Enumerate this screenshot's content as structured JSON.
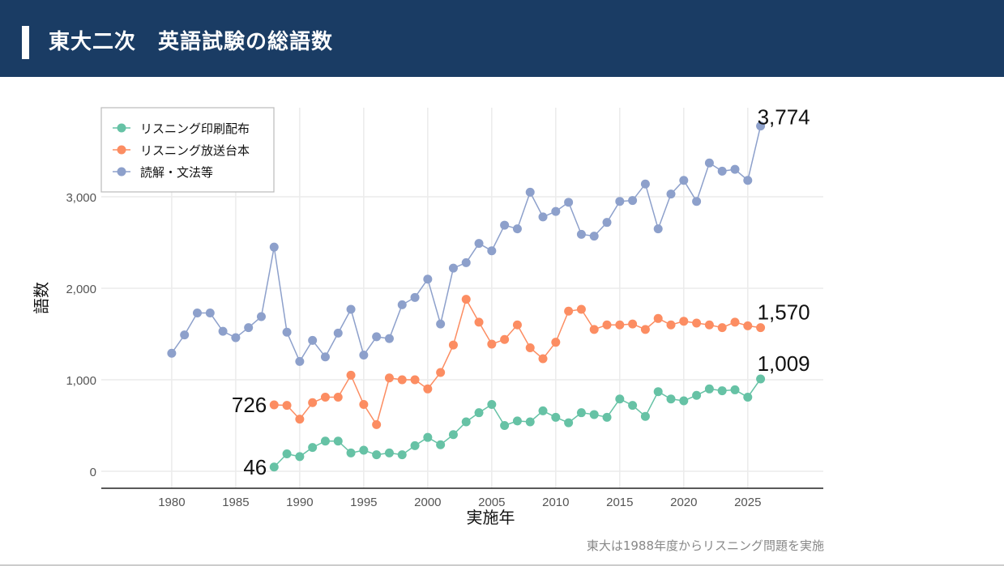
{
  "header": {
    "title": "東大二次　英語試験の総語数"
  },
  "caption": "東大は1988年度からリスニング問題を実施",
  "chart_data": {
    "type": "line",
    "title": "",
    "xlabel": "実施年",
    "ylabel": "語数",
    "xlim": [
      1974.5,
      2030.9
    ],
    "ylim": [
      -186,
      3974
    ],
    "x_ticks": [
      1980,
      1985,
      1990,
      1995,
      2000,
      2005,
      2010,
      2015,
      2020,
      2025
    ],
    "x_tick_labels": [
      "1980",
      "1985",
      "1990",
      "1995",
      "2000",
      "2005",
      "2010",
      "2015",
      "2020",
      "2025"
    ],
    "y_ticks": [
      0,
      1000,
      2000,
      3000
    ],
    "y_tick_labels": [
      "0",
      "1,000",
      "2,000",
      "3,000"
    ],
    "grid": true,
    "legend_position": "top-left",
    "series": [
      {
        "name": "リスニング印刷配布",
        "color": "#66c2a5",
        "start_year": 1988,
        "values": [
          46,
          190,
          160,
          260,
          330,
          330,
          200,
          230,
          180,
          200,
          180,
          280,
          370,
          290,
          400,
          540,
          640,
          730,
          500,
          550,
          540,
          660,
          590,
          530,
          640,
          620,
          590,
          790,
          720,
          600,
          870,
          790,
          770,
          830,
          900,
          880,
          890,
          810,
          1009
        ],
        "first_label": "46",
        "last_label": "1,009"
      },
      {
        "name": "リスニング放送台本",
        "color": "#fc8d62",
        "start_year": 1988,
        "values": [
          726,
          720,
          570,
          750,
          810,
          810,
          1050,
          730,
          510,
          1020,
          1000,
          1000,
          900,
          1080,
          1380,
          1880,
          1630,
          1390,
          1440,
          1600,
          1350,
          1230,
          1410,
          1750,
          1770,
          1550,
          1600,
          1600,
          1610,
          1550,
          1670,
          1600,
          1640,
          1620,
          1600,
          1570,
          1630,
          1590,
          1570
        ],
        "first_label": "726",
        "last_label": "1,570"
      },
      {
        "name": "読解・文法等",
        "color": "#8da0cb",
        "start_year": 1980,
        "values": [
          1290,
          1490,
          1730,
          1730,
          1530,
          1460,
          1570,
          1690,
          2450,
          1520,
          1200,
          1430,
          1250,
          1510,
          1770,
          1270,
          1470,
          1450,
          1820,
          1900,
          2100,
          1610,
          2220,
          2280,
          2490,
          2410,
          2690,
          2650,
          3050,
          2780,
          2840,
          2940,
          2590,
          2570,
          2720,
          2950,
          2960,
          3140,
          2650,
          3030,
          3180,
          2950,
          3370,
          3280,
          3300,
          3180,
          3774
        ],
        "last_label": "3,774"
      }
    ]
  }
}
